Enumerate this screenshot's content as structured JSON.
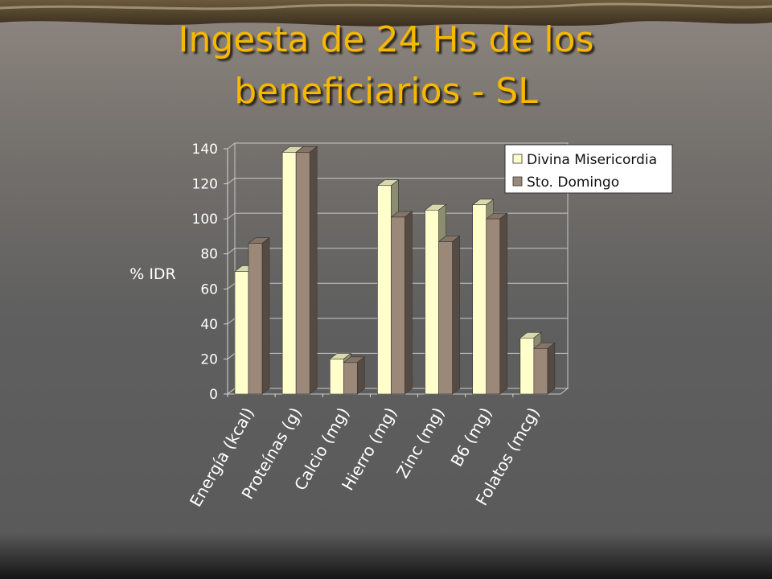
{
  "chart_data": {
    "type": "bar3d",
    "title": "Ingesta de 24 Hs de los beneficiarios - SL",
    "y_label": "% IDR",
    "categories": [
      "Energía (kcal)",
      "Proteínas (g)",
      "Calcio (mg)",
      "Hierro (mg)",
      "Zinc (mg)",
      "B6 (mg)",
      "Folatos (mcg)"
    ],
    "series": [
      {
        "name": "Divina Misericordia",
        "color": "#ffffcc",
        "values": [
          70,
          138,
          20,
          119,
          105,
          108,
          32
        ]
      },
      {
        "name": "Sto. Domingo",
        "color": "#9c8878",
        "values": [
          86,
          138,
          18,
          101,
          87,
          100,
          26
        ]
      }
    ],
    "ylim": [
      0,
      140
    ],
    "yticks": [
      0,
      20,
      40,
      60,
      80,
      100,
      120,
      140
    ],
    "grid": true,
    "legend": "top-right"
  }
}
